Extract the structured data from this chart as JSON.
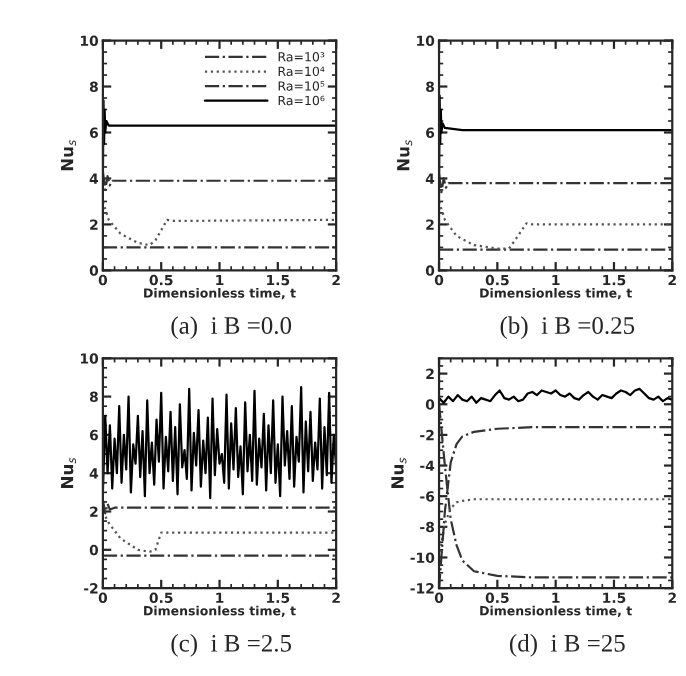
{
  "chart_data": [
    {
      "type": "line",
      "xlabel": "Dimensionless time, t",
      "ylabel": "Nu$_{s}$",
      "xlim": [
        0,
        2
      ],
      "xticks": [
        0,
        0.5,
        1,
        1.5,
        2
      ],
      "ylim": [
        0,
        10
      ],
      "yticks": [
        0,
        2,
        4,
        6,
        8,
        10
      ],
      "legend": "top right",
      "annotations": [
        "(a)  i B =0.0"
      ],
      "series": [
        {
          "name": "Ra=10³",
          "color": "#333333",
          "line_style": "dashed",
          "x": [
            0,
            2
          ],
          "values": [
            1,
            1
          ]
        },
        {
          "name": "Ra=10⁴",
          "color": "#555555",
          "line_style": "dotted",
          "x": [
            0,
            0.05,
            0.15,
            0.3,
            0.4,
            0.45,
            0.55,
            0.6,
            2
          ],
          "values": [
            3,
            2.2,
            1.6,
            1.2,
            1.1,
            1.3,
            2.2,
            2.15,
            2.2
          ]
        },
        {
          "name": "Ra=10⁵",
          "color": "#333333",
          "line_style": "dashed",
          "x": [
            0,
            0.02,
            0.04,
            0.06,
            0.08,
            0.1,
            2
          ],
          "values": [
            4.3,
            3.5,
            4.1,
            3.7,
            3.9,
            3.9,
            3.9
          ]
        },
        {
          "name": "Ra=10⁶",
          "color": "#000000",
          "line_style": "solid",
          "x": [
            0,
            0.005,
            0.01,
            0.015,
            0.02,
            0.03,
            0.05,
            0.1,
            2
          ],
          "values": [
            4,
            7.4,
            5.5,
            7,
            6,
            6.5,
            6.3,
            6.3,
            6.3
          ]
        }
      ]
    },
    {
      "type": "line",
      "xlabel": "Dimensionless time, t",
      "ylabel": "Nu$_{s}$",
      "xlim": [
        0,
        2
      ],
      "xticks": [
        0,
        0.5,
        1,
        1.5,
        2
      ],
      "ylim": [
        0,
        10
      ],
      "yticks": [
        0,
        2,
        4,
        6,
        8,
        10
      ],
      "annotations": [
        "(b)  i B =0.25"
      ],
      "series": [
        {
          "color": "#333333",
          "line_style": "dashed",
          "x": [
            0,
            2
          ],
          "values": [
            0.9,
            0.9
          ]
        },
        {
          "color": "#555555",
          "line_style": "dotted",
          "x": [
            0,
            0.05,
            0.15,
            0.3,
            0.5,
            0.6,
            0.65,
            0.75,
            0.8,
            2
          ],
          "values": [
            3,
            2.2,
            1.5,
            1.1,
            0.95,
            0.95,
            1.3,
            2.05,
            2,
            2
          ]
        },
        {
          "color": "#333333",
          "line_style": "dashed",
          "x": [
            0,
            0.02,
            0.04,
            0.06,
            0.08,
            0.1,
            2
          ],
          "values": [
            4.2,
            3.4,
            4,
            3.6,
            3.8,
            3.8,
            3.8
          ]
        },
        {
          "color": "#000000",
          "line_style": "solid",
          "x": [
            0,
            0.005,
            0.01,
            0.015,
            0.02,
            0.03,
            0.05,
            0.2,
            2
          ],
          "values": [
            4,
            7.6,
            5.5,
            7,
            6,
            6.4,
            6.2,
            6.1,
            6.1
          ]
        }
      ]
    },
    {
      "type": "line",
      "xlabel": "Dimensionless time, t",
      "ylabel": "Nu$_{s}$",
      "xlim": [
        0,
        2
      ],
      "xticks": [
        0,
        0.5,
        1,
        1.5,
        2
      ],
      "ylim": [
        -2,
        10
      ],
      "yticks": [
        -2,
        0,
        2,
        4,
        6,
        8,
        10
      ],
      "annotations": [
        "(c)  i B =2.5"
      ],
      "series": [
        {
          "color": "#333333",
          "line_style": "dashed",
          "x": [
            0,
            2
          ],
          "values": [
            -0.3,
            -0.3
          ]
        },
        {
          "color": "#555555",
          "line_style": "dotted",
          "x": [
            0,
            0.05,
            0.15,
            0.3,
            0.4,
            0.45,
            0.5,
            2
          ],
          "values": [
            2,
            1.4,
            0.6,
            0,
            -0.1,
            0,
            0.9,
            0.9
          ]
        },
        {
          "color": "#333333",
          "line_style": "dashed",
          "x": [
            0,
            0.02,
            0.04,
            0.06,
            0.1,
            2
          ],
          "values": [
            2.6,
            1.9,
            2.4,
            2.1,
            2.2,
            2.2
          ]
        },
        {
          "color": "#000000",
          "line_style": "solid",
          "x": [
            0,
            0.02,
            0.04,
            0.06,
            0.08,
            0.1,
            0.12,
            0.14,
            0.16,
            0.18,
            0.2,
            0.22,
            0.24,
            0.26,
            0.28,
            0.3,
            0.32,
            0.34,
            0.36,
            0.38,
            0.4,
            0.42,
            0.44,
            0.46,
            0.48,
            0.5,
            0.52,
            0.54,
            0.56,
            0.58,
            0.6,
            0.62,
            0.64,
            0.66,
            0.68,
            0.7,
            0.72,
            0.74,
            0.76,
            0.78,
            0.8,
            0.82,
            0.84,
            0.86,
            0.88,
            0.9,
            0.92,
            0.94,
            0.96,
            0.98,
            1,
            1.02,
            1.04,
            1.06,
            1.08,
            1.1,
            1.12,
            1.14,
            1.16,
            1.18,
            1.2,
            1.22,
            1.24,
            1.26,
            1.28,
            1.3,
            1.32,
            1.34,
            1.36,
            1.38,
            1.4,
            1.42,
            1.44,
            1.46,
            1.48,
            1.5,
            1.52,
            1.54,
            1.56,
            1.58,
            1.6,
            1.62,
            1.64,
            1.66,
            1.68,
            1.7,
            1.72,
            1.74,
            1.76,
            1.78,
            1.8,
            1.82,
            1.84,
            1.86,
            1.88,
            1.9,
            1.92,
            1.94,
            1.96,
            1.98,
            2
          ],
          "values": [
            3,
            7,
            4,
            6.5,
            3.2,
            5.8,
            4,
            7.5,
            3.5,
            6,
            4.2,
            8,
            3,
            5.5,
            4.5,
            7,
            3.8,
            6.2,
            2.8,
            7.8,
            4,
            5.6,
            3.4,
            6.8,
            4.6,
            8.2,
            3.2,
            5.9,
            4.1,
            7.2,
            3.6,
            6.4,
            2.9,
            7.6,
            4.3,
            5.2,
            3.7,
            8.4,
            3.1,
            6.1,
            4.4,
            7.3,
            3.3,
            5.7,
            4,
            6.9,
            2.7,
            7.9,
            3.9,
            6.3,
            4.5,
            5,
            3.5,
            8.1,
            3.2,
            6.6,
            4.2,
            7.4,
            3.8,
            5.4,
            2.9,
            7.7,
            4.1,
            6,
            3.6,
            8.3,
            3.4,
            5.8,
            4.3,
            7.1,
            3.1,
            6.5,
            4,
            7.8,
            3.5,
            5.5,
            2.8,
            8,
            4.4,
            6.2,
            3.7,
            7.5,
            3.3,
            5.9,
            4.6,
            8.5,
            3,
            6.7,
            4.1,
            7.2,
            3.6,
            5.6,
            4.2,
            7.9,
            3.2,
            6.4,
            3.9,
            8.2,
            3.5,
            6,
            4.3
          ]
        }
      ]
    },
    {
      "type": "line",
      "xlabel": "Dimensionless time, t",
      "ylabel": "Nu$_{s}$",
      "xlim": [
        0,
        2
      ],
      "xticks": [
        0,
        0.5,
        1,
        1.5,
        2
      ],
      "ylim": [
        -12,
        3
      ],
      "yticks": [
        -12,
        -10,
        -8,
        -6,
        -4,
        -2,
        0,
        2
      ],
      "annotations": [
        "(d)  i B =25"
      ],
      "series": [
        {
          "color": "#333333",
          "line_style": "dashed",
          "x": [
            0,
            0.05,
            0.1,
            0.15,
            0.2,
            0.3,
            0.5,
            0.8,
            2
          ],
          "values": [
            0,
            -4,
            -7.5,
            -9.2,
            -10.2,
            -10.9,
            -11.2,
            -11.3,
            -11.3
          ]
        },
        {
          "color": "#555555",
          "line_style": "dotted",
          "x": [
            0,
            0.05,
            0.1,
            0.15,
            0.2,
            0.3,
            0.5,
            2
          ],
          "values": [
            -10,
            -7.8,
            -6.8,
            -6.4,
            -6.3,
            -6.2,
            -6.2,
            -6.2
          ]
        },
        {
          "color": "#333333",
          "line_style": "dashed",
          "x": [
            0,
            0.05,
            0.1,
            0.15,
            0.2,
            0.3,
            0.5,
            0.8,
            2
          ],
          "values": [
            -12,
            -7,
            -3.8,
            -2.6,
            -2.1,
            -1.8,
            -1.6,
            -1.5,
            -1.5
          ]
        },
        {
          "color": "#000000",
          "line_style": "solid",
          "x": [
            0,
            0.04,
            0.08,
            0.12,
            0.16,
            0.2,
            0.24,
            0.28,
            0.32,
            0.36,
            0.4,
            0.44,
            0.48,
            0.52,
            0.56,
            0.6,
            0.64,
            0.68,
            0.72,
            0.76,
            0.8,
            0.84,
            0.88,
            0.92,
            0.96,
            1,
            1.04,
            1.08,
            1.12,
            1.16,
            1.2,
            1.24,
            1.28,
            1.32,
            1.36,
            1.4,
            1.44,
            1.48,
            1.52,
            1.56,
            1.6,
            1.64,
            1.68,
            1.72,
            1.76,
            1.8,
            1.84,
            1.88,
            1.92,
            1.96,
            2
          ],
          "values": [
            0.4,
            0.1,
            0.5,
            0.2,
            0.6,
            0.3,
            0.2,
            0.5,
            0.1,
            0.4,
            0.3,
            0.2,
            0.6,
            0.9,
            0.4,
            0.3,
            0.5,
            0.2,
            0.3,
            0.7,
            0.8,
            0.6,
            0.9,
            0.8,
            0.7,
            0.9,
            0.6,
            0.5,
            0.7,
            0.4,
            0.3,
            0.6,
            0.8,
            0.5,
            0.3,
            0.6,
            0.5,
            0.4,
            0.7,
            0.9,
            0.8,
            0.6,
            0.9,
            1,
            0.7,
            0.4,
            0.3,
            0.5,
            0.2,
            0.4,
            0.3
          ]
        }
      ]
    }
  ]
}
